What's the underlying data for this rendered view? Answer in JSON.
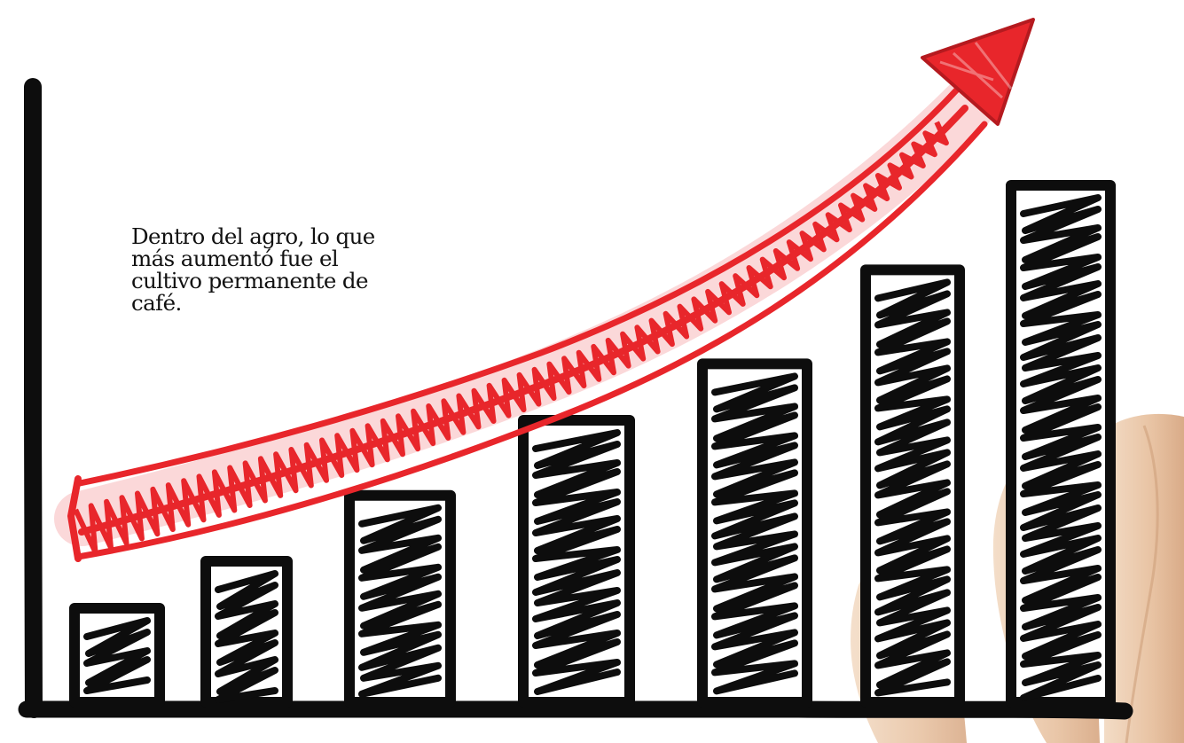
{
  "caption": {
    "text": "Dentro del agro, lo que más aumentó fue el cultivo permanente de café."
  },
  "chart_data": {
    "type": "bar",
    "style": "hand-drawn sketch",
    "categories": [
      "",
      "",
      "",
      "",
      "",
      "",
      ""
    ],
    "values": [
      1,
      1.5,
      2.2,
      3,
      3.6,
      4.6,
      5.5
    ],
    "trend": "upward",
    "grid": false,
    "legend": "none",
    "title": "",
    "xlabel": "",
    "ylabel": ""
  },
  "colors": {
    "background": "#ffffff",
    "ink": "#0d0d0d",
    "arrow": "#e8262b",
    "skin": "#e9c9ae"
  },
  "icons": {
    "arrow": "trend-up-arrow-icon"
  }
}
